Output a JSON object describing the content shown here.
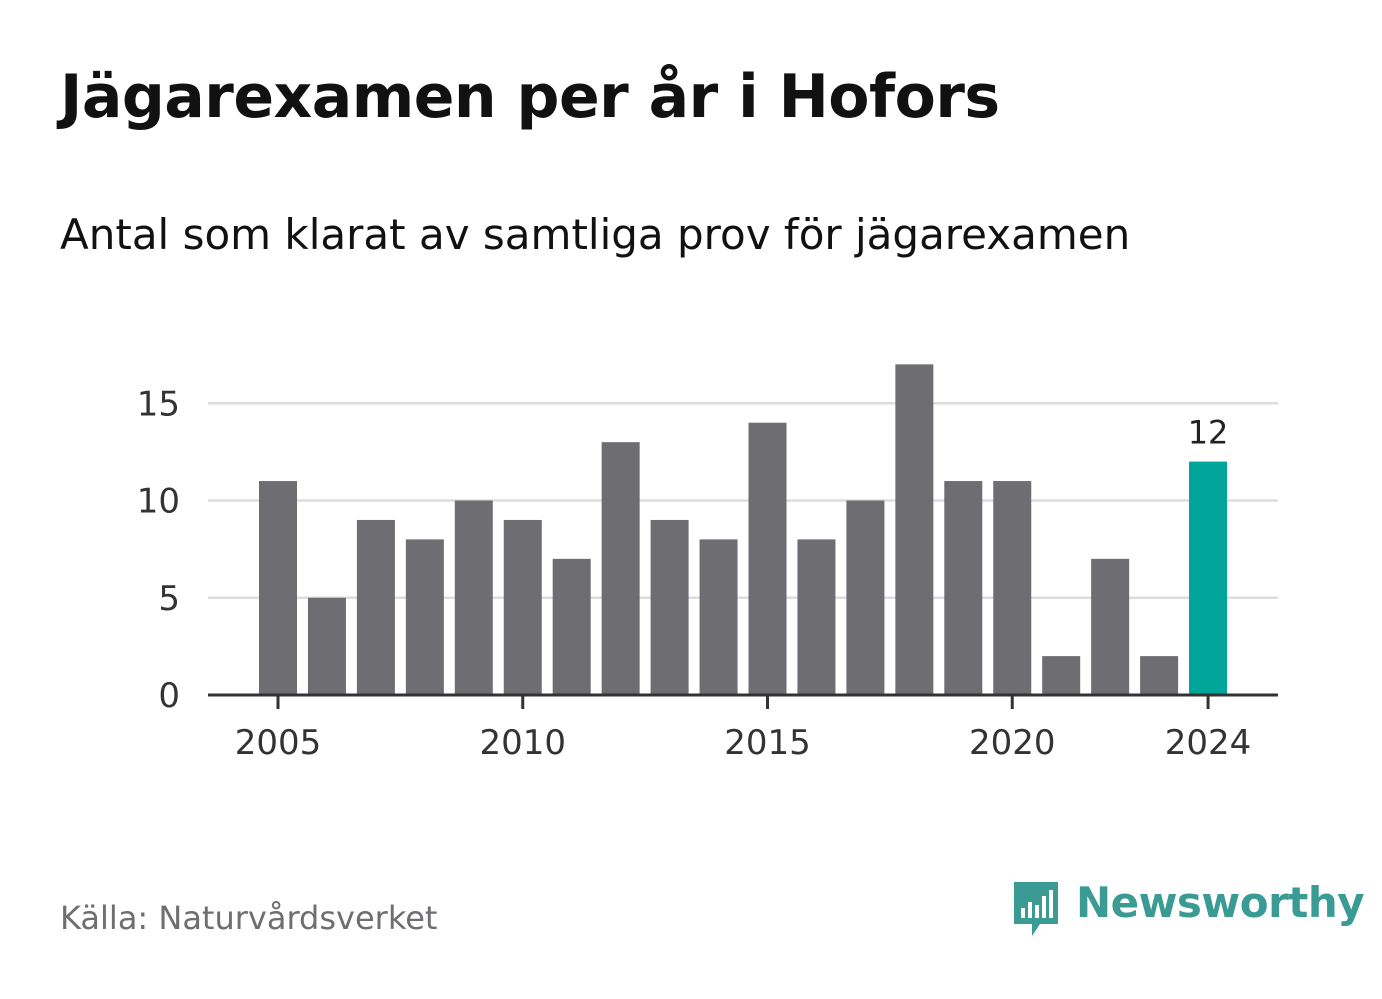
{
  "header": {
    "title": "Jägarexamen per år i Hofors",
    "subtitle": "Antal som klarat av samtliga prov för jägarexamen"
  },
  "footer": {
    "source": "Källa: Naturvårdsverket",
    "brand": "Newsworthy"
  },
  "colors": {
    "bar": "#6e6d72",
    "highlight": "#00a499",
    "grid": "#dddddd",
    "axis": "#333333",
    "tick_text": "#333333",
    "brand": "#3a9a94"
  },
  "chart_data": {
    "type": "bar",
    "categories": [
      "2005",
      "2006",
      "2007",
      "2008",
      "2009",
      "2010",
      "2011",
      "2012",
      "2013",
      "2014",
      "2015",
      "2016",
      "2017",
      "2018",
      "2019",
      "2020",
      "2021",
      "2022",
      "2023",
      "2024"
    ],
    "values": [
      11,
      5,
      9,
      8,
      10,
      9,
      7,
      13,
      9,
      8,
      14,
      8,
      10,
      17,
      11,
      11,
      2,
      7,
      2,
      12
    ],
    "highlight": "2024",
    "data_labels": [
      {
        "category": "2024",
        "text": "12"
      }
    ],
    "x_tick_labels": [
      "2005",
      "2010",
      "2015",
      "2020",
      "2024"
    ],
    "y_ticks": [
      0,
      5,
      10,
      15
    ],
    "ylim": [
      0,
      17
    ],
    "title": "Jägarexamen per år i Hofors",
    "subtitle": "Antal som klarat av samtliga prov för jägarexamen",
    "grid": true,
    "legend": false
  }
}
